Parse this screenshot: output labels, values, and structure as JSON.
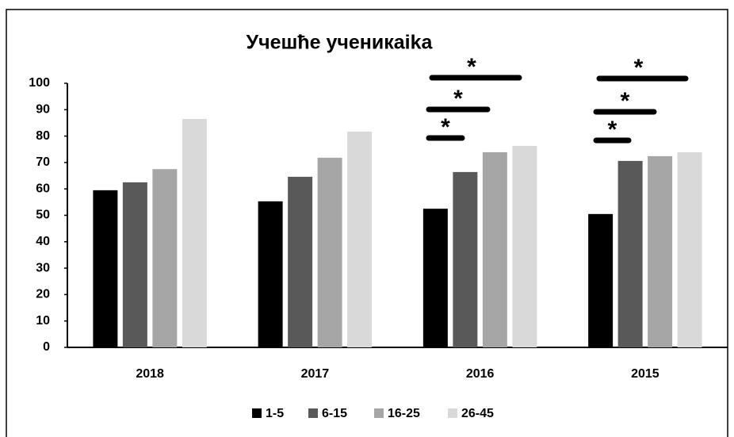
{
  "chart_data": {
    "type": "bar",
    "title": "Учешће ученикаika",
    "categories": [
      "2018",
      "2017",
      "2016",
      "2015"
    ],
    "series": [
      {
        "name": "1-5",
        "color": "#000000",
        "values": [
          59.5,
          55.3,
          52.5,
          50.5
        ]
      },
      {
        "name": "6-15",
        "color": "#595959",
        "values": [
          62.5,
          64.6,
          66.4,
          70.6
        ]
      },
      {
        "name": "16-25",
        "color": "#a6a6a6",
        "values": [
          67.5,
          71.8,
          73.9,
          72.4
        ]
      },
      {
        "name": "26-45",
        "color": "#d9d9d9",
        "values": [
          86.5,
          81.7,
          76.3,
          73.9
        ]
      }
    ],
    "ylim": [
      0,
      100
    ],
    "yticks": [
      0,
      10,
      20,
      30,
      40,
      50,
      60,
      70,
      80,
      90,
      100
    ],
    "grid": false,
    "legend": "bottom",
    "annotations": [
      "*",
      "*",
      "*",
      "*",
      "*",
      "*"
    ]
  }
}
